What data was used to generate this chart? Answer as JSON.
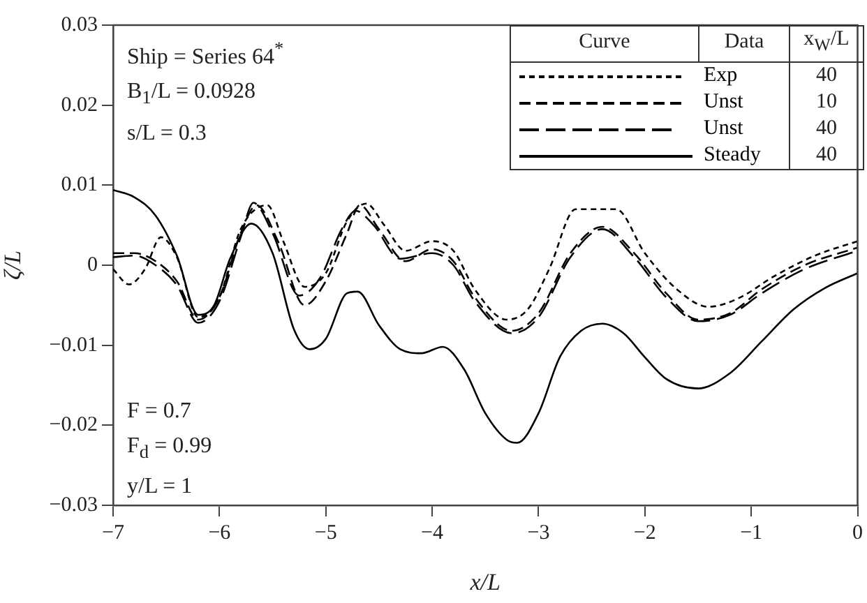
{
  "chart_data": {
    "type": "line",
    "xlabel": "x/L",
    "ylabel": "ζ/L",
    "xlim": [
      -7,
      0
    ],
    "xticks": [
      {
        "value": -7,
        "label": "−7"
      },
      {
        "value": -6,
        "label": "−6"
      },
      {
        "value": -5,
        "label": "−5"
      },
      {
        "value": -4,
        "label": "−4"
      },
      {
        "value": -3,
        "label": "−3"
      },
      {
        "value": -2,
        "label": "−2"
      },
      {
        "value": -1,
        "label": "−1"
      },
      0
    ],
    "ylim": [
      -0.03,
      0.03
    ],
    "yticks": [
      {
        "value": -0.03,
        "label": "−0.03"
      },
      {
        "value": -0.02,
        "label": "−0.02"
      },
      {
        "value": -0.01,
        "label": "−0.01"
      },
      0,
      0.01,
      0.02,
      0.03
    ],
    "grid": false,
    "legend": "top right",
    "marker": "none",
    "annotations": [
      "Ship = Series 64$^{*}$",
      "B$_{1}$/L = 0.0928",
      "s/L = 0.3",
      "F = 0.7",
      "F$_{d}$ = 0.99",
      "y/L = 1",
      "Curve",
      "Data",
      "x$_{W}$/L",
      "40",
      "10",
      "40",
      "40"
    ],
    "series": [
      {
        "name": "Exp",
        "color": "#000000",
        "line_style": "dotted",
        "x": [
          -7,
          -6.85,
          -6.7,
          -6.55,
          -6.4,
          -6.2,
          -6.0,
          -5.8,
          -5.55,
          -5.4,
          -5.2,
          -5.0,
          -4.8,
          -4.62,
          -4.45,
          -4.25,
          -4.0,
          -3.8,
          -3.6,
          -3.3,
          -3.1,
          -2.9,
          -2.65,
          -2.27,
          -2.0,
          -1.7,
          -1.4,
          -1.1,
          -0.8,
          -0.4,
          0
        ],
        "values": [
          -0.0005,
          -0.0024,
          -0.0005,
          0.0035,
          0.001,
          -0.0065,
          -0.004,
          0.0045,
          0.0075,
          0.003,
          -0.0027,
          -0.001,
          0.0055,
          0.0077,
          0.005,
          0.0018,
          0.003,
          0.0018,
          -0.003,
          -0.0068,
          -0.0055,
          -0.0005,
          0.007,
          0.007,
          0.0015,
          -0.003,
          -0.0052,
          -0.004,
          -0.0015,
          0.0012,
          0.003
        ]
      },
      {
        "name": "Unst",
        "color": "#000000",
        "line_style": "dashed",
        "x": [
          -7,
          -6.8,
          -6.6,
          -6.4,
          -6.2,
          -6.0,
          -5.8,
          -5.65,
          -5.45,
          -5.2,
          -5.0,
          -4.8,
          -4.68,
          -4.5,
          -4.25,
          -4.0,
          -3.8,
          -3.6,
          -3.25,
          -3.0,
          -2.7,
          -2.4,
          -2.1,
          -1.8,
          -1.5,
          -1.2,
          -0.9,
          -0.5,
          0
        ],
        "values": [
          0.0015,
          0.0015,
          0.0005,
          -0.002,
          -0.0068,
          -0.004,
          0.004,
          0.0075,
          0.003,
          -0.005,
          -0.002,
          0.004,
          0.0075,
          0.0045,
          0.0005,
          0.002,
          0.0005,
          -0.004,
          -0.0082,
          -0.006,
          0.0015,
          0.0048,
          0.0015,
          -0.0035,
          -0.0068,
          -0.006,
          -0.003,
          0,
          0.0022
        ]
      },
      {
        "name": "Unst",
        "color": "#000000",
        "line_style": "dashed",
        "x": [
          -7,
          -6.8,
          -6.6,
          -6.4,
          -6.2,
          -6.0,
          -5.8,
          -5.68,
          -5.5,
          -5.25,
          -5.05,
          -4.85,
          -4.72,
          -4.55,
          -4.3,
          -4.0,
          -3.8,
          -3.6,
          -3.25,
          -3.0,
          -2.7,
          -2.4,
          -2.1,
          -1.8,
          -1.5,
          -1.2,
          -0.9,
          -0.5,
          0
        ],
        "values": [
          0.001,
          0.0012,
          0,
          -0.0025,
          -0.0072,
          -0.0045,
          0.0035,
          0.0078,
          0.004,
          -0.0038,
          -0.0015,
          0.0045,
          0.0068,
          0.005,
          0.0008,
          0.0015,
          0,
          -0.0045,
          -0.0085,
          -0.0065,
          0.001,
          0.0045,
          0.001,
          -0.004,
          -0.007,
          -0.0062,
          -0.0035,
          -0.0005,
          0.0018
        ]
      },
      {
        "name": "Steady",
        "color": "#000000",
        "line_style": "solid",
        "x": [
          -7,
          -6.8,
          -6.6,
          -6.4,
          -6.2,
          -6.05,
          -5.9,
          -5.7,
          -5.5,
          -5.3,
          -5.15,
          -5.0,
          -4.8,
          -4.7,
          -4.5,
          -4.3,
          -4.1,
          -3.9,
          -3.7,
          -3.5,
          -3.3,
          -3.2,
          -3.0,
          -2.8,
          -2.6,
          -2.4,
          -2.2,
          -2.0,
          -1.8,
          -1.5,
          -1.2,
          -0.9,
          -0.6,
          -0.3,
          0
        ],
        "values": [
          0.0094,
          0.0085,
          0.0062,
          0.0012,
          -0.0062,
          -0.005,
          0.0008,
          0.0052,
          0.0015,
          -0.008,
          -0.0105,
          -0.0092,
          -0.0035,
          -0.0033,
          -0.0075,
          -0.0105,
          -0.011,
          -0.0102,
          -0.013,
          -0.0185,
          -0.0218,
          -0.0222,
          -0.0185,
          -0.0115,
          -0.0082,
          -0.0073,
          -0.0085,
          -0.0115,
          -0.0142,
          -0.0154,
          -0.0135,
          -0.0095,
          -0.0055,
          -0.0028,
          -0.001
        ]
      }
    ]
  }
}
